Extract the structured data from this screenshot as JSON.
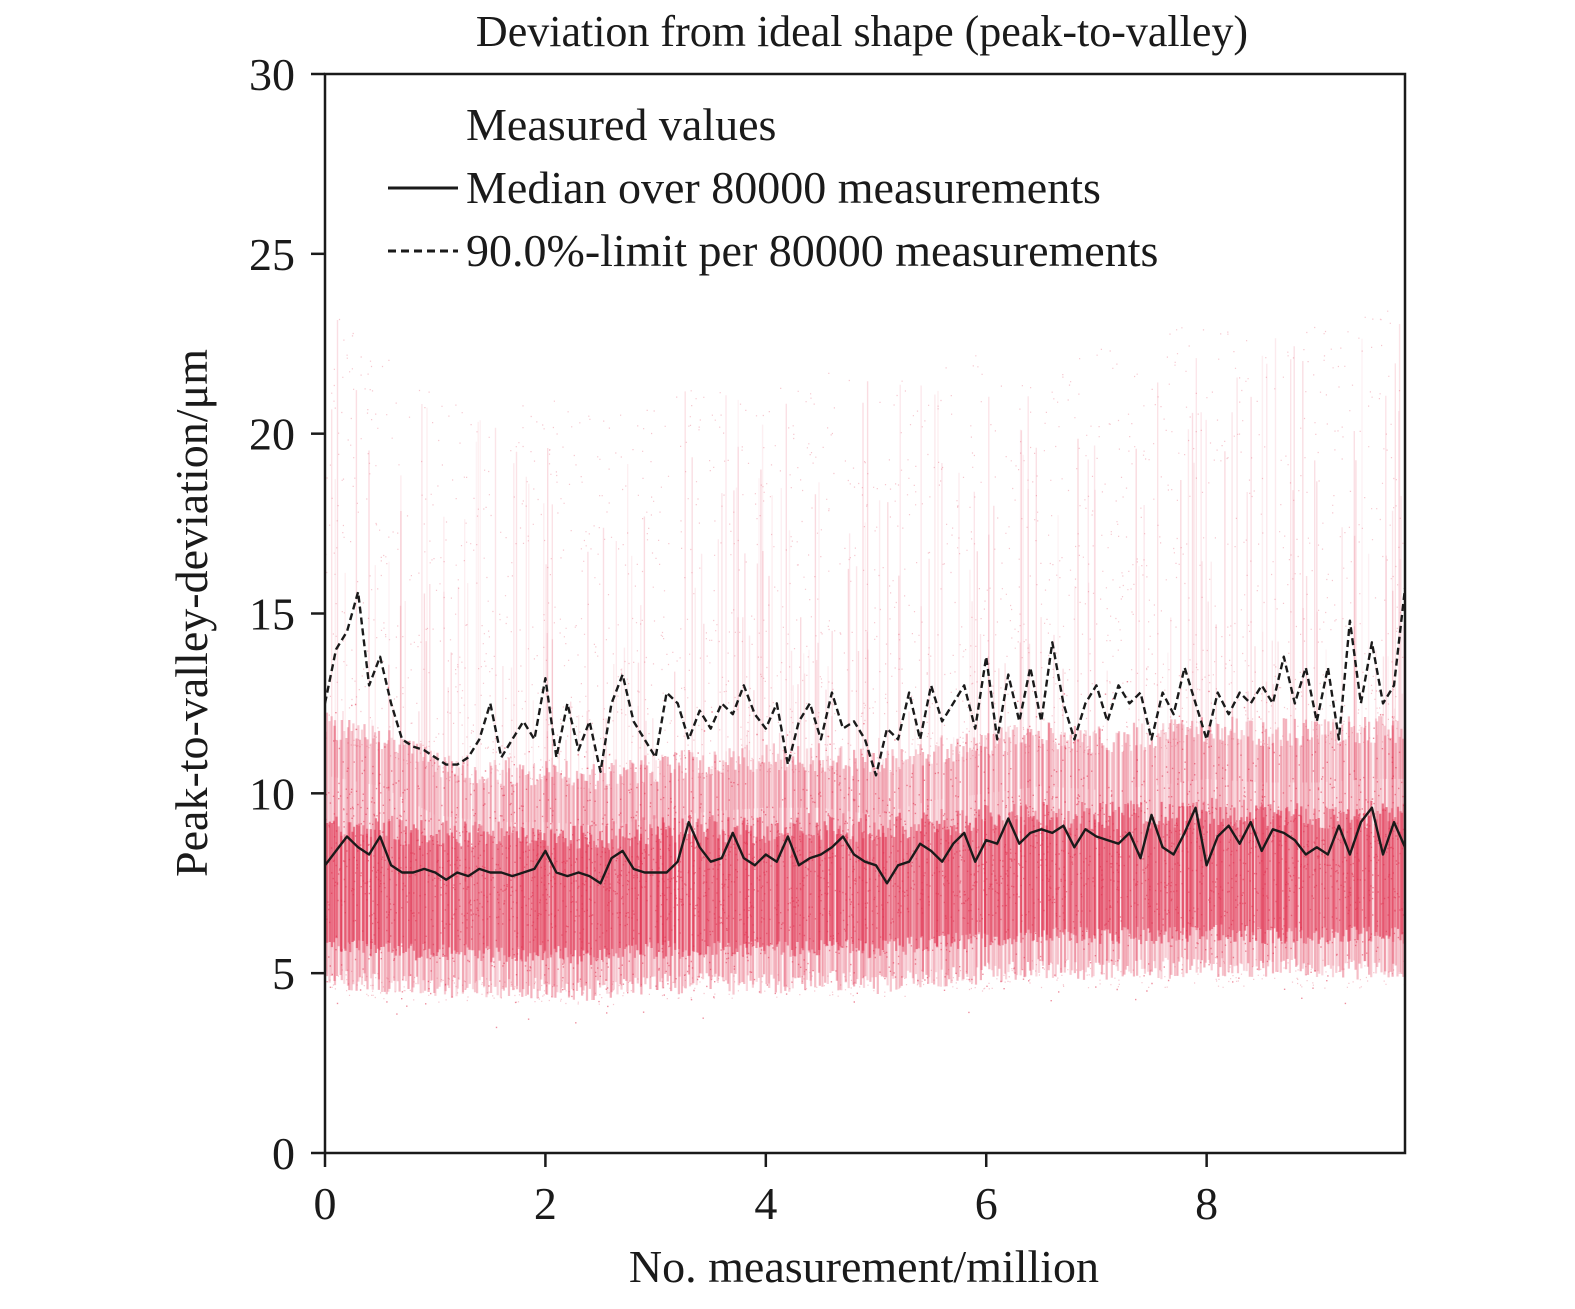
{
  "chart_data": {
    "type": "scatter",
    "title": "Deviation from ideal shape (peak-to-valley)",
    "xlabel": "No. measurement/million",
    "ylabel": "Peak-to-valley-deviation/μm",
    "xlim": [
      0,
      9.8
    ],
    "ylim": [
      0,
      30
    ],
    "x_ticks": [
      0,
      2,
      4,
      6,
      8
    ],
    "y_ticks": [
      0,
      5,
      10,
      15,
      20,
      25,
      30
    ],
    "grid": false,
    "legend_position": "top-right",
    "colors": {
      "measured": "#e0314f",
      "median": "#1a1a1a",
      "limit": "#1a1a1a"
    },
    "series": [
      {
        "name": "Measured values",
        "style": "scatter-density",
        "band": {
          "x": [
            0,
            0.5,
            1.0,
            1.5,
            2.0,
            2.5,
            3.0,
            3.5,
            4.0,
            4.5,
            5.0,
            5.5,
            6.0,
            6.5,
            7.0,
            7.5,
            8.0,
            8.5,
            9.0,
            9.5,
            9.8
          ],
          "dense_low": [
            5.2,
            5.0,
            4.9,
            4.9,
            4.9,
            4.8,
            5.0,
            5.0,
            5.0,
            5.1,
            5.0,
            5.2,
            5.3,
            5.4,
            5.4,
            5.4,
            5.5,
            5.4,
            5.4,
            5.4,
            5.4
          ],
          "dense_high": [
            11.5,
            11.2,
            10.4,
            10.2,
            10.2,
            10.1,
            10.3,
            10.5,
            10.6,
            10.6,
            10.4,
            10.8,
            11.0,
            11.2,
            11.1,
            11.2,
            11.4,
            11.3,
            11.3,
            11.4,
            11.4
          ],
          "sparse_low": [
            4.4,
            4.3,
            4.2,
            4.2,
            4.2,
            4.1,
            4.3,
            4.3,
            4.3,
            4.4,
            4.3,
            4.4,
            4.5,
            4.6,
            4.6,
            4.6,
            4.6,
            4.6,
            4.6,
            4.6,
            4.6
          ],
          "sparse_high": [
            23.5,
            22.5,
            21.0,
            20.5,
            21.0,
            20.5,
            21.0,
            21.5,
            21.5,
            22.0,
            21.5,
            22.0,
            22.5,
            22.5,
            22.5,
            23.0,
            23.0,
            23.0,
            23.0,
            23.5,
            23.5
          ]
        }
      },
      {
        "name": "Median over 80000 measurements",
        "style": "solid",
        "x": [
          0,
          0.1,
          0.2,
          0.3,
          0.4,
          0.5,
          0.6,
          0.7,
          0.8,
          0.9,
          1.0,
          1.1,
          1.2,
          1.3,
          1.4,
          1.5,
          1.6,
          1.7,
          1.8,
          1.9,
          2.0,
          2.1,
          2.2,
          2.3,
          2.4,
          2.5,
          2.6,
          2.7,
          2.8,
          2.9,
          3.0,
          3.1,
          3.2,
          3.3,
          3.4,
          3.5,
          3.6,
          3.7,
          3.8,
          3.9,
          4.0,
          4.1,
          4.2,
          4.3,
          4.4,
          4.5,
          4.6,
          4.7,
          4.8,
          4.9,
          5.0,
          5.1,
          5.2,
          5.3,
          5.4,
          5.5,
          5.6,
          5.7,
          5.8,
          5.9,
          6.0,
          6.1,
          6.2,
          6.3,
          6.4,
          6.5,
          6.6,
          6.7,
          6.8,
          6.9,
          7.0,
          7.1,
          7.2,
          7.3,
          7.4,
          7.5,
          7.6,
          7.7,
          7.8,
          7.9,
          8.0,
          8.1,
          8.2,
          8.3,
          8.4,
          8.5,
          8.6,
          8.7,
          8.8,
          8.9,
          9.0,
          9.1,
          9.2,
          9.3,
          9.4,
          9.5,
          9.6,
          9.7,
          9.8
        ],
        "values": [
          8.0,
          8.4,
          8.8,
          8.5,
          8.3,
          8.8,
          8.0,
          7.8,
          7.8,
          7.9,
          7.8,
          7.6,
          7.8,
          7.7,
          7.9,
          7.8,
          7.8,
          7.7,
          7.8,
          7.9,
          8.4,
          7.8,
          7.7,
          7.8,
          7.7,
          7.5,
          8.2,
          8.4,
          7.9,
          7.8,
          7.8,
          7.8,
          8.1,
          9.2,
          8.5,
          8.1,
          8.2,
          8.9,
          8.2,
          8.0,
          8.3,
          8.1,
          8.8,
          8.0,
          8.2,
          8.3,
          8.5,
          8.8,
          8.3,
          8.1,
          8.0,
          7.5,
          8.0,
          8.1,
          8.6,
          8.4,
          8.1,
          8.6,
          8.9,
          8.1,
          8.7,
          8.6,
          9.3,
          8.6,
          8.9,
          9.0,
          8.9,
          9.1,
          8.5,
          9.0,
          8.8,
          8.7,
          8.6,
          8.9,
          8.2,
          9.4,
          8.5,
          8.3,
          8.9,
          9.6,
          8.0,
          8.8,
          9.1,
          8.6,
          9.2,
          8.4,
          9.0,
          8.9,
          8.7,
          8.3,
          8.5,
          8.3,
          9.1,
          8.3,
          9.2,
          9.6,
          8.3,
          9.2,
          8.5
        ]
      },
      {
        "name": "90.0%-limit per 80000 measurements",
        "style": "dashed",
        "x": [
          0,
          0.1,
          0.2,
          0.3,
          0.4,
          0.5,
          0.6,
          0.7,
          0.8,
          0.9,
          1.0,
          1.1,
          1.2,
          1.3,
          1.4,
          1.5,
          1.6,
          1.7,
          1.8,
          1.9,
          2.0,
          2.1,
          2.2,
          2.3,
          2.4,
          2.5,
          2.6,
          2.7,
          2.8,
          2.9,
          3.0,
          3.1,
          3.2,
          3.3,
          3.4,
          3.5,
          3.6,
          3.7,
          3.8,
          3.9,
          4.0,
          4.1,
          4.2,
          4.3,
          4.4,
          4.5,
          4.6,
          4.7,
          4.8,
          4.9,
          5.0,
          5.1,
          5.2,
          5.3,
          5.4,
          5.5,
          5.6,
          5.7,
          5.8,
          5.9,
          6.0,
          6.1,
          6.2,
          6.3,
          6.4,
          6.5,
          6.6,
          6.7,
          6.8,
          6.9,
          7.0,
          7.1,
          7.2,
          7.3,
          7.4,
          7.5,
          7.6,
          7.7,
          7.8,
          7.9,
          8.0,
          8.1,
          8.2,
          8.3,
          8.4,
          8.5,
          8.6,
          8.7,
          8.8,
          8.9,
          9.0,
          9.1,
          9.2,
          9.3,
          9.4,
          9.5,
          9.6,
          9.7,
          9.8
        ],
        "values": [
          12.5,
          14.0,
          14.5,
          15.6,
          13.0,
          13.8,
          12.5,
          11.5,
          11.3,
          11.2,
          11.0,
          10.8,
          10.8,
          11.0,
          11.5,
          12.5,
          11.0,
          11.5,
          12.0,
          11.5,
          13.2,
          11.0,
          12.5,
          11.2,
          12.0,
          10.6,
          12.5,
          13.3,
          12.0,
          11.5,
          11.0,
          12.8,
          12.5,
          11.5,
          12.3,
          11.8,
          12.5,
          12.2,
          13.0,
          12.2,
          11.8,
          12.5,
          10.8,
          12.0,
          12.5,
          11.5,
          12.8,
          11.8,
          12.0,
          11.5,
          10.5,
          11.8,
          11.5,
          12.8,
          11.5,
          13.0,
          12.0,
          12.5,
          13.0,
          11.8,
          13.8,
          11.5,
          13.3,
          12.0,
          13.5,
          12.0,
          14.2,
          12.5,
          11.5,
          12.5,
          13.0,
          12.0,
          13.0,
          12.5,
          12.8,
          11.5,
          12.8,
          12.2,
          13.5,
          12.5,
          11.5,
          12.8,
          12.2,
          12.8,
          12.5,
          13.0,
          12.5,
          13.8,
          12.5,
          13.5,
          12.0,
          13.5,
          11.5,
          14.8,
          12.5,
          14.2,
          12.5,
          13.0,
          15.7
        ]
      }
    ]
  }
}
